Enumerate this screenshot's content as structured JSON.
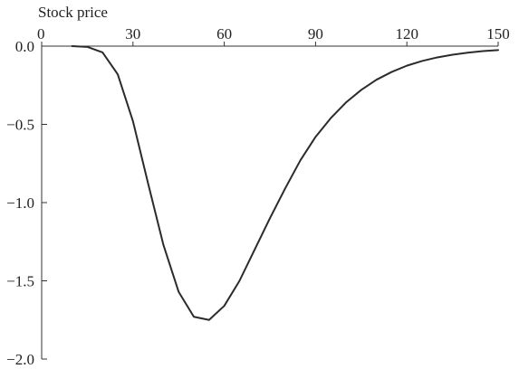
{
  "chart_data": {
    "type": "line",
    "title": "",
    "xlabel": "Stock price",
    "ylabel": "",
    "xlim": [
      0,
      150
    ],
    "ylim": [
      -2.0,
      0.0
    ],
    "x_ticks": [
      0,
      30,
      60,
      90,
      120,
      150
    ],
    "y_ticks": [
      0.0,
      -0.5,
      -1.0,
      -1.5,
      -2.0
    ],
    "x_tick_labels": [
      "0",
      "30",
      "60",
      "90",
      "120",
      "150"
    ],
    "y_tick_labels": [
      "0.0",
      "−0.5",
      "−1.0",
      "−1.5",
      "−2.0"
    ],
    "x_axis_position": "top",
    "grid": false,
    "legend": "none",
    "line_color": "#2b2b2b",
    "series": [
      {
        "x": [
          10,
          15,
          20,
          25,
          30,
          35,
          40,
          45,
          50,
          55,
          60,
          65,
          70,
          75,
          80,
          85,
          90,
          95,
          100,
          105,
          110,
          115,
          120,
          125,
          130,
          135,
          140,
          145,
          150
        ],
        "values": [
          0.0,
          -0.005,
          -0.04,
          -0.18,
          -0.48,
          -0.88,
          -1.27,
          -1.57,
          -1.73,
          -1.75,
          -1.66,
          -1.5,
          -1.3,
          -1.1,
          -0.91,
          -0.73,
          -0.58,
          -0.46,
          -0.36,
          -0.28,
          -0.215,
          -0.165,
          -0.125,
          -0.095,
          -0.072,
          -0.055,
          -0.042,
          -0.032,
          -0.025
        ]
      }
    ]
  }
}
